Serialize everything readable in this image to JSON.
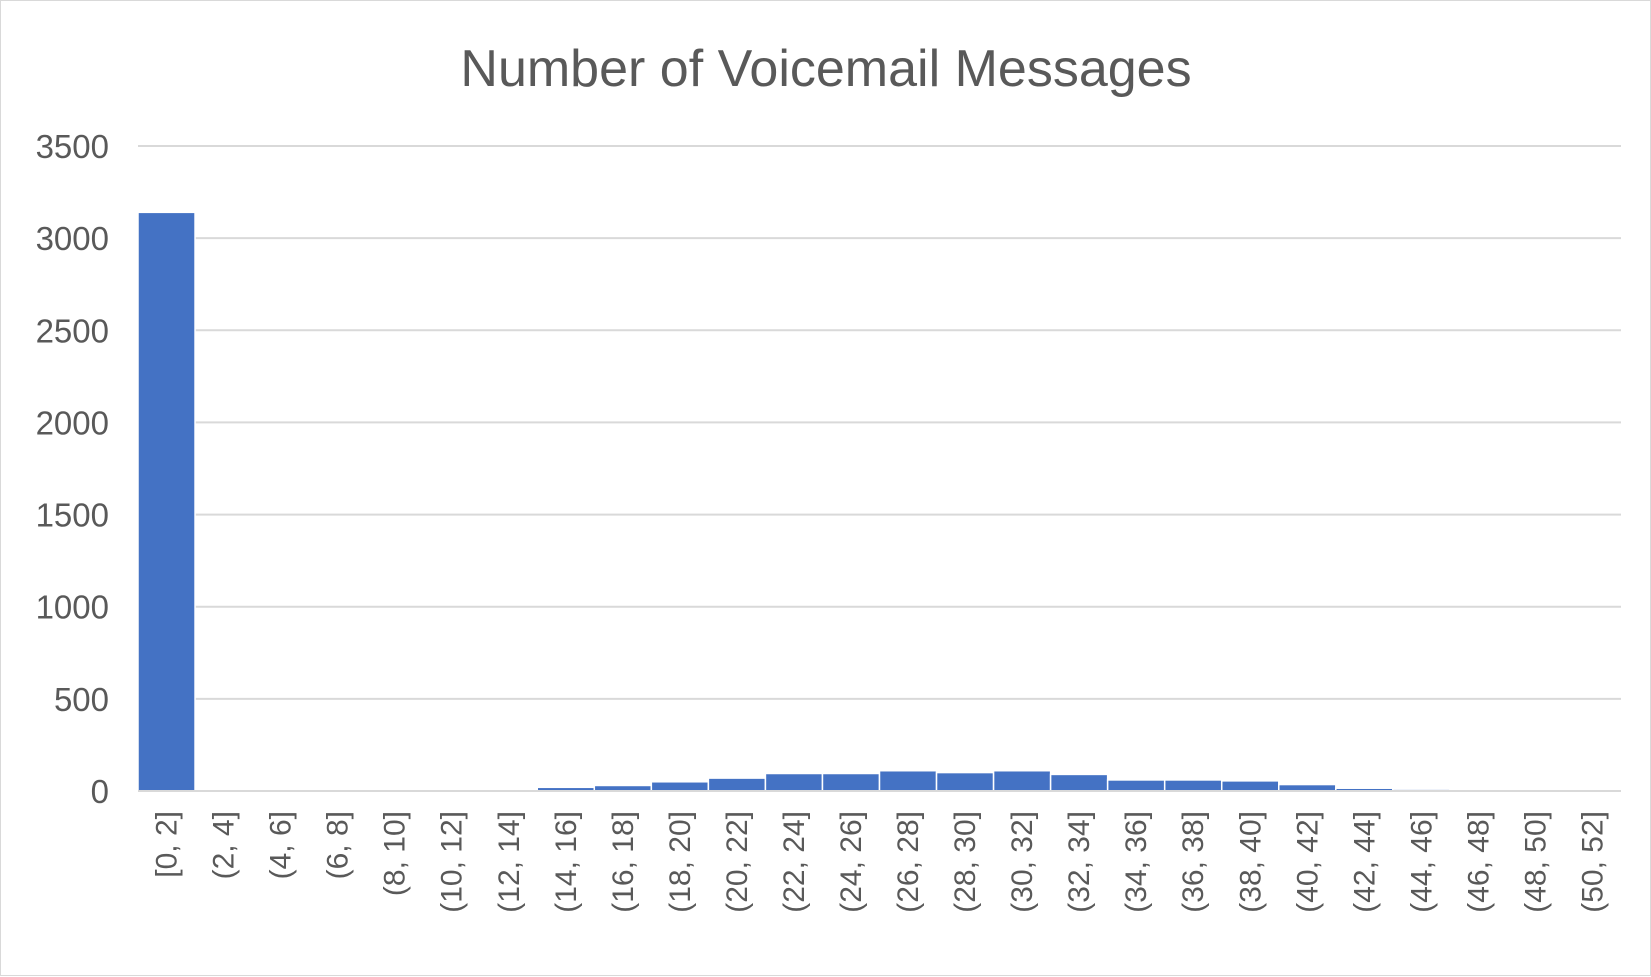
{
  "colors": {
    "bar": "#4472c4",
    "grid": "#d9d9d9",
    "text": "#595959",
    "background": "#ffffff"
  },
  "chart_data": {
    "type": "bar",
    "title": "Number of Voicemail Messages",
    "xlabel": "",
    "ylabel": "",
    "ylim": [
      0,
      3500
    ],
    "yticks": [
      0,
      500,
      1000,
      1500,
      2000,
      2500,
      3000,
      3500
    ],
    "grid": true,
    "legend": "none",
    "categories": [
      "[0, 2]",
      "(2, 4]",
      "(4, 6]",
      "(6, 8]",
      "(8, 10]",
      "(10, 12]",
      "(12, 14]",
      "(14, 16]",
      "(16, 18]",
      "(18, 20]",
      "(20, 22]",
      "(22, 24]",
      "(24, 26]",
      "(26, 28]",
      "(28, 30]",
      "(30, 32]",
      "(32, 34]",
      "(34, 36]",
      "(36, 38]",
      "(38, 40]",
      "(40, 42]",
      "(42, 44]",
      "(44, 46]",
      "(46, 48]",
      "(48, 50]",
      "(50, 52]"
    ],
    "values": [
      3140,
      0,
      0,
      0,
      0,
      0,
      0,
      20,
      30,
      50,
      70,
      95,
      95,
      110,
      100,
      110,
      90,
      60,
      60,
      55,
      35,
      15,
      10,
      3,
      2,
      1
    ]
  }
}
